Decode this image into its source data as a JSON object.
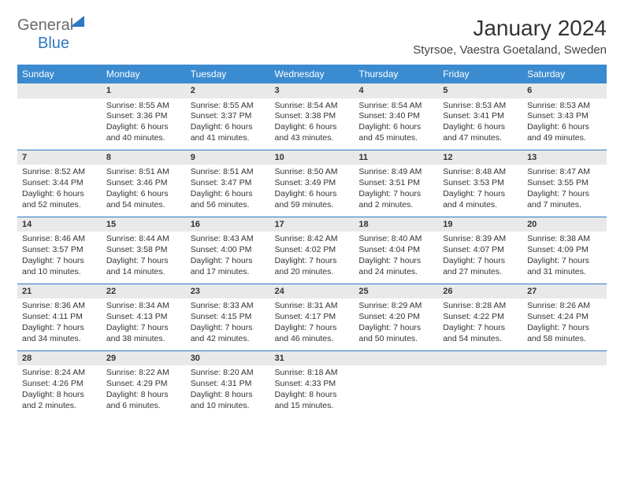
{
  "logo": {
    "general": "General",
    "blue": "Blue"
  },
  "title": "January 2024",
  "location": "Styrsoe, Vaestra Goetaland, Sweden",
  "colors": {
    "header_bg": "#3b8bd0",
    "header_text": "#ffffff",
    "rule": "#2b79c2",
    "dayrow_bg": "#e9e9e9",
    "logo_blue": "#2b79c2",
    "logo_gray": "#6b6b6b"
  },
  "dayHeaders": [
    "Sunday",
    "Monday",
    "Tuesday",
    "Wednesday",
    "Thursday",
    "Friday",
    "Saturday"
  ],
  "weeks": [
    {
      "nums": [
        "",
        "1",
        "2",
        "3",
        "4",
        "5",
        "6"
      ],
      "cells": [
        null,
        {
          "sr": "8:55 AM",
          "ss": "3:36 PM",
          "dlh": "6",
          "dlm": "40"
        },
        {
          "sr": "8:55 AM",
          "ss": "3:37 PM",
          "dlh": "6",
          "dlm": "41"
        },
        {
          "sr": "8:54 AM",
          "ss": "3:38 PM",
          "dlh": "6",
          "dlm": "43"
        },
        {
          "sr": "8:54 AM",
          "ss": "3:40 PM",
          "dlh": "6",
          "dlm": "45"
        },
        {
          "sr": "8:53 AM",
          "ss": "3:41 PM",
          "dlh": "6",
          "dlm": "47"
        },
        {
          "sr": "8:53 AM",
          "ss": "3:43 PM",
          "dlh": "6",
          "dlm": "49"
        }
      ]
    },
    {
      "nums": [
        "7",
        "8",
        "9",
        "10",
        "11",
        "12",
        "13"
      ],
      "cells": [
        {
          "sr": "8:52 AM",
          "ss": "3:44 PM",
          "dlh": "6",
          "dlm": "52"
        },
        {
          "sr": "8:51 AM",
          "ss": "3:46 PM",
          "dlh": "6",
          "dlm": "54"
        },
        {
          "sr": "8:51 AM",
          "ss": "3:47 PM",
          "dlh": "6",
          "dlm": "56"
        },
        {
          "sr": "8:50 AM",
          "ss": "3:49 PM",
          "dlh": "6",
          "dlm": "59"
        },
        {
          "sr": "8:49 AM",
          "ss": "3:51 PM",
          "dlh": "7",
          "dlm": "2"
        },
        {
          "sr": "8:48 AM",
          "ss": "3:53 PM",
          "dlh": "7",
          "dlm": "4"
        },
        {
          "sr": "8:47 AM",
          "ss": "3:55 PM",
          "dlh": "7",
          "dlm": "7"
        }
      ]
    },
    {
      "nums": [
        "14",
        "15",
        "16",
        "17",
        "18",
        "19",
        "20"
      ],
      "cells": [
        {
          "sr": "8:46 AM",
          "ss": "3:57 PM",
          "dlh": "7",
          "dlm": "10"
        },
        {
          "sr": "8:44 AM",
          "ss": "3:58 PM",
          "dlh": "7",
          "dlm": "14"
        },
        {
          "sr": "8:43 AM",
          "ss": "4:00 PM",
          "dlh": "7",
          "dlm": "17"
        },
        {
          "sr": "8:42 AM",
          "ss": "4:02 PM",
          "dlh": "7",
          "dlm": "20"
        },
        {
          "sr": "8:40 AM",
          "ss": "4:04 PM",
          "dlh": "7",
          "dlm": "24"
        },
        {
          "sr": "8:39 AM",
          "ss": "4:07 PM",
          "dlh": "7",
          "dlm": "27"
        },
        {
          "sr": "8:38 AM",
          "ss": "4:09 PM",
          "dlh": "7",
          "dlm": "31"
        }
      ]
    },
    {
      "nums": [
        "21",
        "22",
        "23",
        "24",
        "25",
        "26",
        "27"
      ],
      "cells": [
        {
          "sr": "8:36 AM",
          "ss": "4:11 PM",
          "dlh": "7",
          "dlm": "34"
        },
        {
          "sr": "8:34 AM",
          "ss": "4:13 PM",
          "dlh": "7",
          "dlm": "38"
        },
        {
          "sr": "8:33 AM",
          "ss": "4:15 PM",
          "dlh": "7",
          "dlm": "42"
        },
        {
          "sr": "8:31 AM",
          "ss": "4:17 PM",
          "dlh": "7",
          "dlm": "46"
        },
        {
          "sr": "8:29 AM",
          "ss": "4:20 PM",
          "dlh": "7",
          "dlm": "50"
        },
        {
          "sr": "8:28 AM",
          "ss": "4:22 PM",
          "dlh": "7",
          "dlm": "54"
        },
        {
          "sr": "8:26 AM",
          "ss": "4:24 PM",
          "dlh": "7",
          "dlm": "58"
        }
      ]
    },
    {
      "nums": [
        "28",
        "29",
        "30",
        "31",
        "",
        "",
        ""
      ],
      "cells": [
        {
          "sr": "8:24 AM",
          "ss": "4:26 PM",
          "dlh": "8",
          "dlm": "2"
        },
        {
          "sr": "8:22 AM",
          "ss": "4:29 PM",
          "dlh": "8",
          "dlm": "6"
        },
        {
          "sr": "8:20 AM",
          "ss": "4:31 PM",
          "dlh": "8",
          "dlm": "10"
        },
        {
          "sr": "8:18 AM",
          "ss": "4:33 PM",
          "dlh": "8",
          "dlm": "15"
        },
        null,
        null,
        null
      ]
    }
  ]
}
